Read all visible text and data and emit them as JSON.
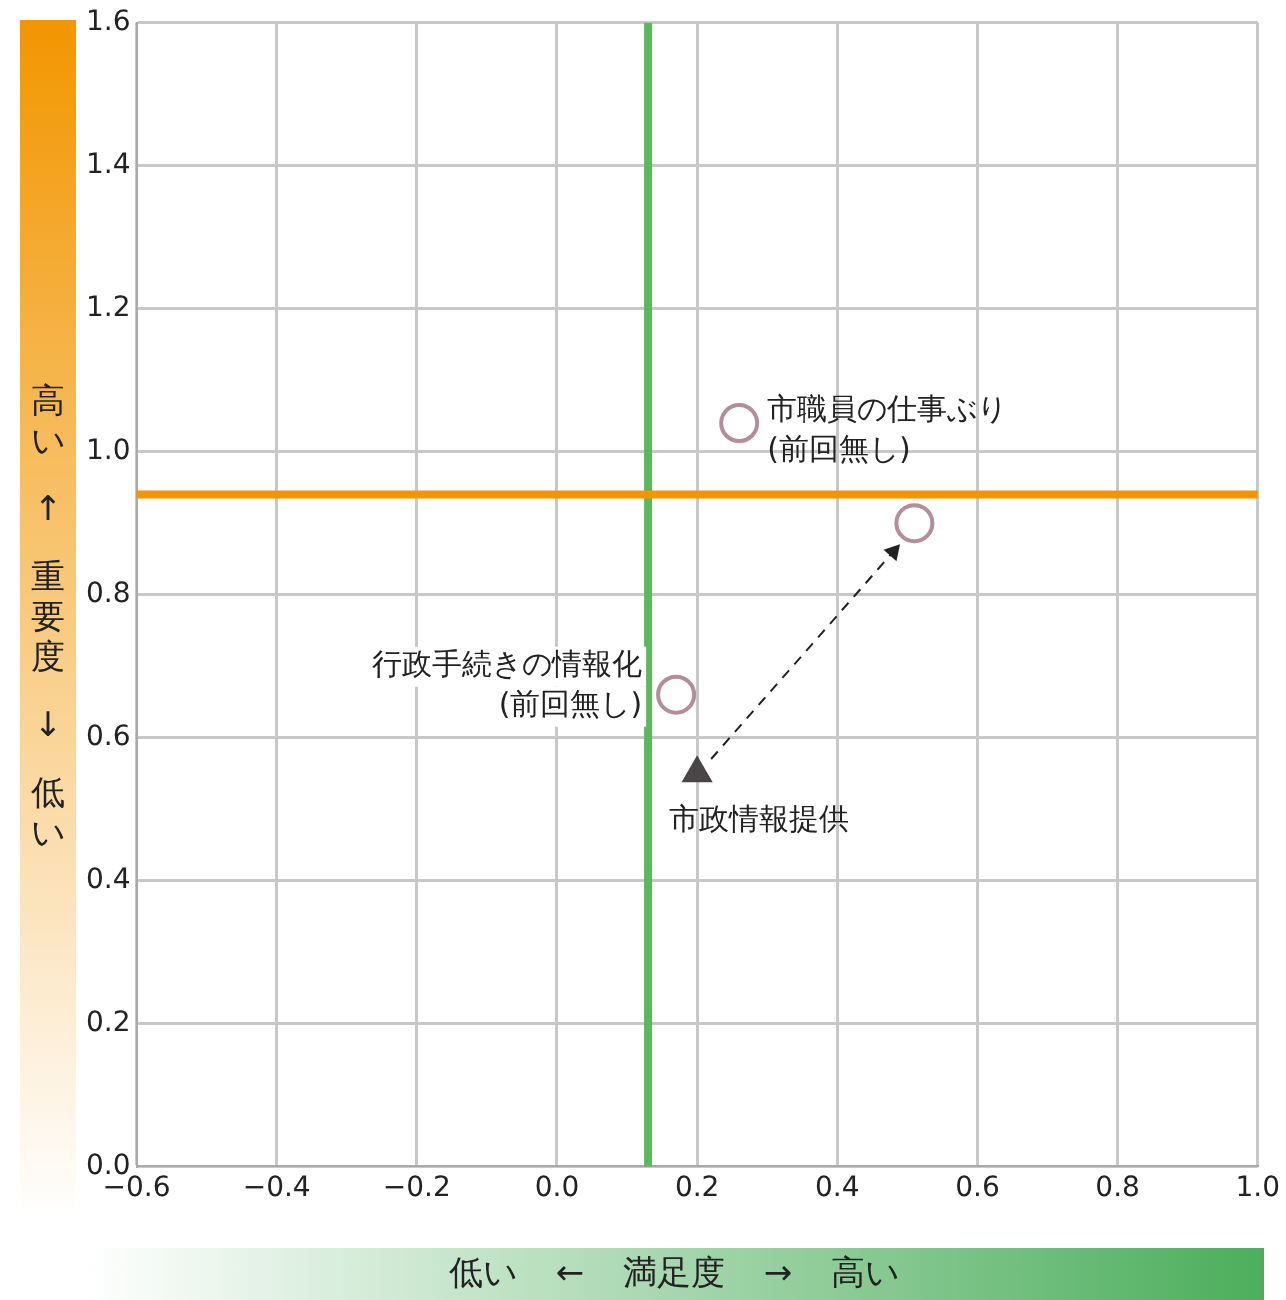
{
  "chart_data": {
    "type": "scatter",
    "xlabel": "低い ← 満足度 → 高い",
    "ylabel": "高い ↑ 重要度 ↓ 低い",
    "xlim": [
      -0.6,
      1.0
    ],
    "xticks": [
      {
        "value": -0.6,
        "label": "−0.6"
      },
      {
        "value": -0.4,
        "label": "−0.4"
      },
      {
        "value": -0.2,
        "label": "−0.2"
      },
      {
        "value": 0,
        "label": "0.0"
      },
      0.2,
      0.4,
      0.6,
      0.8,
      {
        "value": 1,
        "label": "1.0"
      }
    ],
    "ylim": [
      0,
      1.6
    ],
    "yticks": [
      {
        "value": 0,
        "label": "0.0"
      },
      0.2,
      0.4,
      0.6,
      0.8,
      {
        "value": 1,
        "label": "1.0"
      },
      1.2,
      1.4,
      1.6
    ],
    "grid": true,
    "legend": false,
    "ref_lines": [
      {
        "axis": "x",
        "value": 0.13,
        "color": "#5cb85c"
      },
      {
        "axis": "y",
        "value": 0.94,
        "color": "#f29600"
      }
    ],
    "series": [
      {
        "type": "scatter",
        "name": "市職員の仕事ぶり\n(前回無し)",
        "color": "#b48c9a",
        "marker": "circle",
        "x": [
          0.26
        ],
        "values": [
          1.04
        ]
      },
      {
        "type": "scatter",
        "name": "行政手続きの情報化\n(前回無し)",
        "color": "#b48c9a",
        "marker": "circle",
        "x": [
          0.17
        ],
        "values": [
          0.66
        ]
      },
      {
        "type": "scatter",
        "name": "市政情報提供",
        "color": "#4a4546",
        "marker": "triangle",
        "x": [
          0.2
        ],
        "values": [
          0.55
        ]
      },
      {
        "type": "scatter",
        "color": "#b48c9a",
        "marker": "circle",
        "x": [
          0.51
        ],
        "values": [
          0.9
        ]
      },
      {
        "type": "line",
        "color": "#222222",
        "line_style": "dashed",
        "marker": "triangle",
        "x": [
          0.22,
          0.48
        ],
        "values": [
          0.57,
          0.86
        ]
      }
    ]
  }
}
